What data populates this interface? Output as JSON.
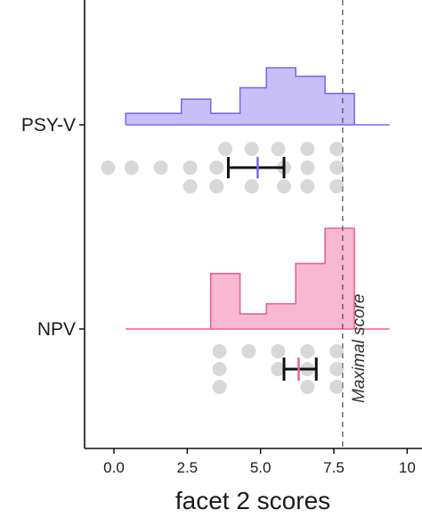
{
  "chart_data": {
    "type": "histogram-dotplot",
    "xlabel": "facet 2 scores",
    "xlim": [
      -0.6,
      10.1
    ],
    "xticks": [
      0.0,
      2.5,
      5.0,
      7.5,
      10
    ],
    "xtick_labels": [
      "0.0",
      "2.5",
      "5.0",
      "7.5",
      "10"
    ],
    "grid": false,
    "reference_line": {
      "x": 7.8,
      "label": "Maximal score",
      "style": "dashed"
    },
    "groups": [
      {
        "label": "PSY-V",
        "color": "#7b68ee",
        "fill": "#c8bff8",
        "baseline_range": [
          0.4,
          9.4
        ],
        "bins": [
          {
            "x0": 0.4,
            "x1": 2.3,
            "value": 0.2
          },
          {
            "x0": 2.3,
            "x1": 3.3,
            "value": 0.45
          },
          {
            "x0": 3.3,
            "x1": 4.3,
            "value": 0.2
          },
          {
            "x0": 4.3,
            "x1": 5.2,
            "value": 0.65
          },
          {
            "x0": 5.2,
            "x1": 6.2,
            "value": 1.0
          },
          {
            "x0": 6.2,
            "x1": 7.2,
            "value": 0.85
          },
          {
            "x0": 7.2,
            "x1": 8.2,
            "value": 0.55
          }
        ],
        "mean": 4.9,
        "ci": [
          3.9,
          5.8
        ],
        "points": [
          {
            "x": -0.2,
            "row": 0
          },
          {
            "x": 0.6,
            "row": 0
          },
          {
            "x": 1.6,
            "row": 0
          },
          {
            "x": 2.6,
            "row": 0
          },
          {
            "x": 2.6,
            "row": 1
          },
          {
            "x": 3.5,
            "row": 0
          },
          {
            "x": 3.5,
            "row": 1
          },
          {
            "x": 3.8,
            "row": -1
          },
          {
            "x": 4.7,
            "row": -1
          },
          {
            "x": 4.7,
            "row": 1
          },
          {
            "x": 5.6,
            "row": -1
          },
          {
            "x": 5.8,
            "row": 0
          },
          {
            "x": 5.8,
            "row": 1
          },
          {
            "x": 6.6,
            "row": -1
          },
          {
            "x": 6.6,
            "row": 0
          },
          {
            "x": 6.6,
            "row": 1
          },
          {
            "x": 7.6,
            "row": -1
          },
          {
            "x": 7.6,
            "row": 0
          },
          {
            "x": 7.6,
            "row": 1
          }
        ]
      },
      {
        "label": "NPV",
        "color": "#e8609a",
        "fill": "#f9b8d2",
        "baseline_range": [
          0.4,
          9.4
        ],
        "bins": [
          {
            "x0": 3.3,
            "x1": 4.3,
            "value": 0.55
          },
          {
            "x0": 4.3,
            "x1": 5.2,
            "value": 0.15
          },
          {
            "x0": 5.2,
            "x1": 6.2,
            "value": 0.25
          },
          {
            "x0": 6.2,
            "x1": 7.2,
            "value": 0.65
          },
          {
            "x0": 7.2,
            "x1": 8.2,
            "value": 1.0
          }
        ],
        "mean": 6.3,
        "ci": [
          5.8,
          6.9
        ],
        "points": [
          {
            "x": 3.6,
            "row": -1
          },
          {
            "x": 3.6,
            "row": 0
          },
          {
            "x": 3.6,
            "row": 1
          },
          {
            "x": 4.6,
            "row": -1
          },
          {
            "x": 5.6,
            "row": -1
          },
          {
            "x": 5.6,
            "row": 0
          },
          {
            "x": 6.6,
            "row": -1
          },
          {
            "x": 6.6,
            "row": 0
          },
          {
            "x": 6.6,
            "row": 1
          },
          {
            "x": 7.6,
            "row": -1
          },
          {
            "x": 7.6,
            "row": 0
          },
          {
            "x": 7.6,
            "row": 1
          }
        ]
      }
    ]
  }
}
